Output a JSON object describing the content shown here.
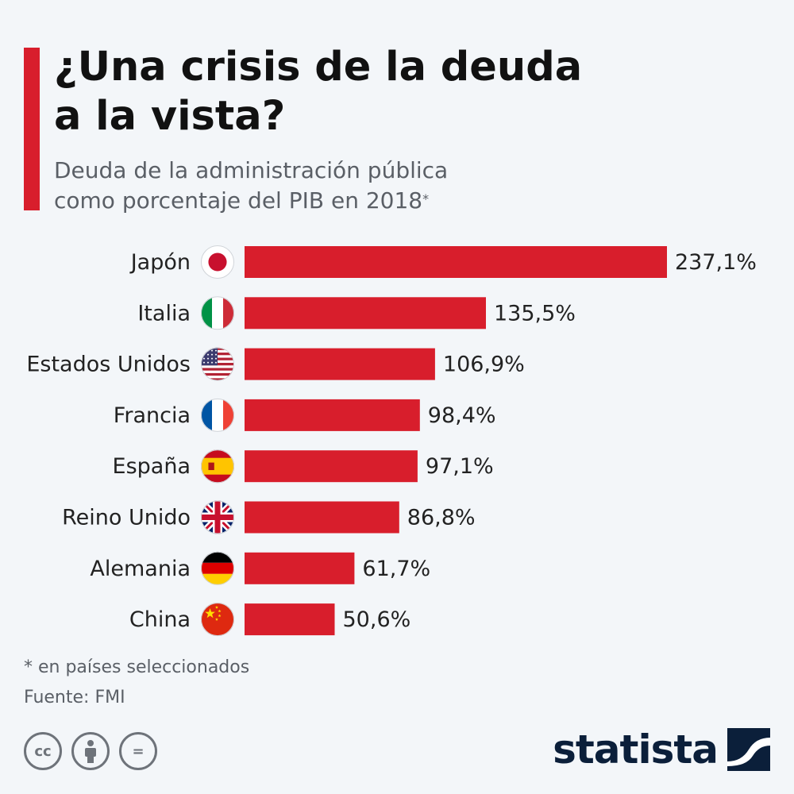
{
  "header": {
    "title_lines": [
      "¿Una crisis de la deuda",
      "a la vista?"
    ],
    "subtitle_lines": [
      "Deuda de la administración pública",
      "como porcentaje del PIB en 2018"
    ],
    "subtitle_mark": "*"
  },
  "colors": {
    "accent": "#d81e2c",
    "bar": "#d81e2c",
    "text": "#111111",
    "muted": "#5a5f66",
    "brand": "#0b1f3a"
  },
  "chart_data": {
    "type": "bar",
    "orientation": "horizontal",
    "title": "¿Una crisis de la deuda a la vista?",
    "categories": [
      "Japón",
      "Italia",
      "Estados Unidos",
      "Francia",
      "España",
      "Reino Unido",
      "Alemania",
      "China"
    ],
    "values": [
      237.1,
      135.5,
      106.9,
      98.4,
      97.1,
      86.8,
      61.7,
      50.6
    ],
    "value_labels": [
      "237,1%",
      "135,5%",
      "106,9%",
      "98,4%",
      "97,1%",
      "86,8%",
      "61,7%",
      "50,6%"
    ],
    "flags": [
      "japan-flag",
      "italy-flag",
      "usa-flag",
      "france-flag",
      "spain-flag",
      "uk-flag",
      "germany-flag",
      "china-flag"
    ],
    "unit": "%",
    "xlim": [
      0,
      237.1
    ],
    "grid": false,
    "legend": "none"
  },
  "footer": {
    "footnote": "* en países seleccionados",
    "source": "Fuente: FMI",
    "license_icons": [
      "cc-icon",
      "attribution-icon",
      "no-derivatives-icon"
    ],
    "license_glyphs": [
      "cc",
      "="
    ],
    "brand": "statista"
  }
}
